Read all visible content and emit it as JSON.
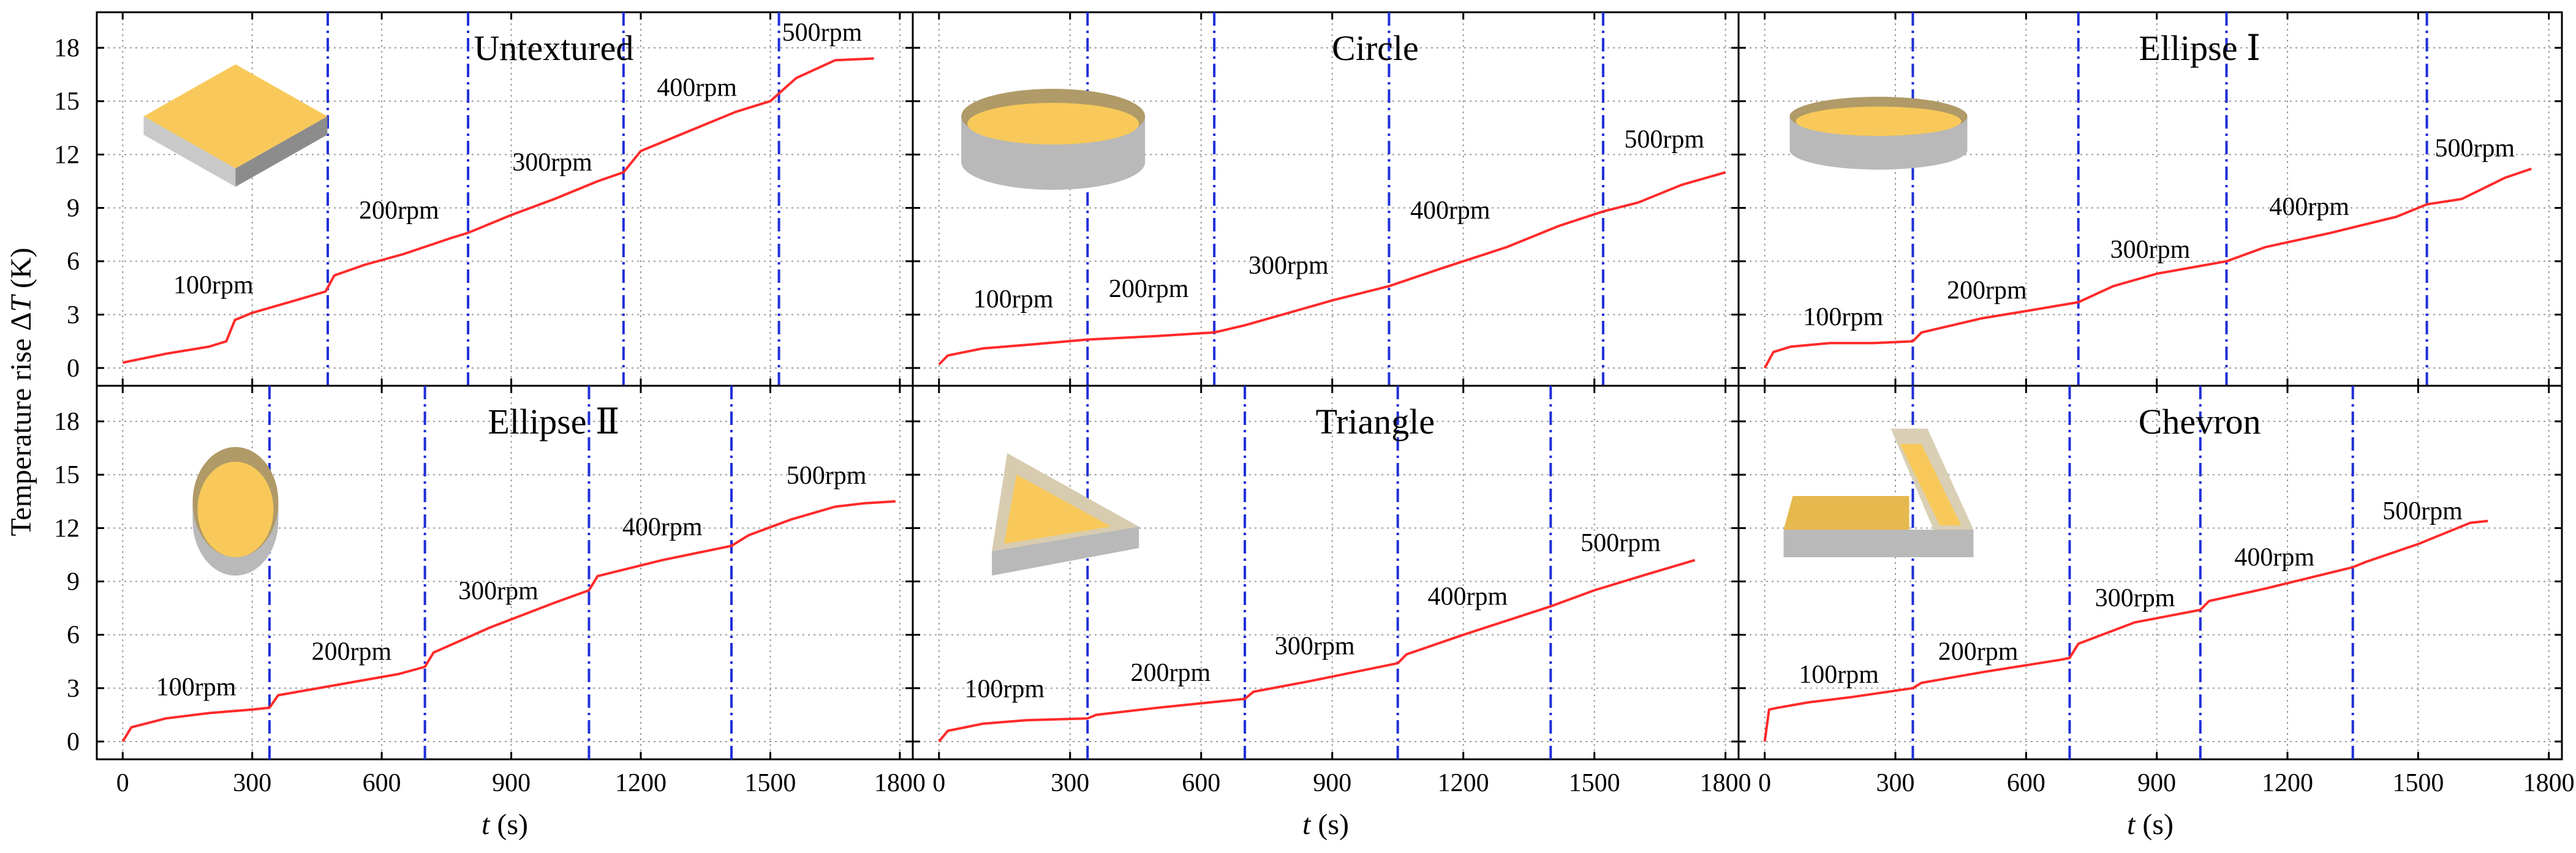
{
  "figure": {
    "y_axis_label_prefix": "Temperature rise Δ",
    "y_axis_label_var": "T",
    "y_axis_label_suffix": " (K)",
    "x_axis_label_var": "t",
    "x_axis_label_suffix": " (s)",
    "colors": {
      "curve": "#ff2a2a",
      "divider": "#1f2fd8",
      "grid": "#9a9a9a",
      "shape_top": "#f8c95a",
      "shape_side": "#b9b9b9",
      "shape_rim": "#b09a67"
    }
  },
  "chart_data": [
    {
      "type": "line",
      "title": "Untextured",
      "shape": "square-block",
      "xlabel": "t (s)",
      "ylabel": "Temperature rise ΔT (K)",
      "xlim": [
        -60,
        1830
      ],
      "ylim": [
        -1,
        20
      ],
      "xticks": [
        0,
        300,
        600,
        900,
        1200,
        1500,
        1800
      ],
      "yticks": [
        0,
        3,
        6,
        9,
        12,
        15,
        18
      ],
      "grid": true,
      "dividers": [
        475,
        800,
        1160,
        1520
      ],
      "rpm_labels": [
        {
          "text": "100rpm",
          "t": 210,
          "T": 4.2
        },
        {
          "text": "200rpm",
          "t": 640,
          "T": 8.4
        },
        {
          "text": "300rpm",
          "t": 995,
          "T": 11.1
        },
        {
          "text": "400rpm",
          "t": 1330,
          "T": 15.3
        },
        {
          "text": "500rpm",
          "t": 1620,
          "T": 18.4
        }
      ],
      "series": [
        {
          "name": "ΔT",
          "x": [
            0,
            100,
            200,
            240,
            260,
            300,
            400,
            470,
            490,
            560,
            650,
            760,
            800,
            900,
            1000,
            1100,
            1160,
            1200,
            1300,
            1420,
            1500,
            1560,
            1650,
            1740
          ],
          "y": [
            0.3,
            0.8,
            1.2,
            1.5,
            2.7,
            3.1,
            3.8,
            4.3,
            5.2,
            5.8,
            6.4,
            7.3,
            7.6,
            8.6,
            9.5,
            10.5,
            11.0,
            12.2,
            13.2,
            14.4,
            15.0,
            16.3,
            17.3,
            17.4
          ]
        }
      ]
    },
    {
      "type": "line",
      "title": "Circle",
      "shape": "circle-disc",
      "xlabel": "t (s)",
      "ylabel": "",
      "xlim": [
        -60,
        1830
      ],
      "ylim": [
        -1,
        20
      ],
      "xticks": [
        0,
        300,
        600,
        900,
        1200,
        1500,
        1800
      ],
      "yticks": [
        0,
        3,
        6,
        9,
        12,
        15,
        18
      ],
      "grid": true,
      "dividers": [
        340,
        630,
        1030,
        1520
      ],
      "rpm_labels": [
        {
          "text": "100rpm",
          "t": 170,
          "T": 3.4
        },
        {
          "text": "200rpm",
          "t": 480,
          "T": 4.0
        },
        {
          "text": "300rpm",
          "t": 800,
          "T": 5.3
        },
        {
          "text": "400rpm",
          "t": 1170,
          "T": 8.4
        },
        {
          "text": "500rpm",
          "t": 1660,
          "T": 12.4
        }
      ],
      "series": [
        {
          "name": "ΔT",
          "x": [
            0,
            20,
            100,
            200,
            340,
            500,
            630,
            700,
            800,
            900,
            1030,
            1150,
            1300,
            1420,
            1520,
            1600,
            1700,
            1800
          ],
          "y": [
            0.2,
            0.7,
            1.1,
            1.3,
            1.6,
            1.8,
            2.0,
            2.4,
            3.1,
            3.8,
            4.6,
            5.6,
            6.8,
            8.0,
            8.8,
            9.3,
            10.3,
            11.0
          ]
        }
      ]
    },
    {
      "type": "line",
      "title": "Ellipse Ⅰ",
      "shape": "ellipse-disc",
      "xlabel": "t (s)",
      "ylabel": "",
      "xlim": [
        -60,
        1830
      ],
      "ylim": [
        -1,
        20
      ],
      "xticks": [
        0,
        300,
        600,
        900,
        1200,
        1500,
        1800
      ],
      "yticks": [
        0,
        3,
        6,
        9,
        12,
        15,
        18
      ],
      "grid": true,
      "dividers": [
        340,
        720,
        1060,
        1520
      ],
      "rpm_labels": [
        {
          "text": "100rpm",
          "t": 180,
          "T": 2.4
        },
        {
          "text": "200rpm",
          "t": 510,
          "T": 3.9
        },
        {
          "text": "300rpm",
          "t": 885,
          "T": 6.2
        },
        {
          "text": "400rpm",
          "t": 1250,
          "T": 8.6
        },
        {
          "text": "500rpm",
          "t": 1630,
          "T": 11.9
        }
      ],
      "series": [
        {
          "name": "ΔT",
          "x": [
            0,
            20,
            60,
            150,
            250,
            340,
            360,
            500,
            600,
            720,
            800,
            900,
            1060,
            1150,
            1300,
            1450,
            1520,
            1600,
            1700,
            1760
          ],
          "y": [
            0.0,
            0.9,
            1.2,
            1.4,
            1.4,
            1.5,
            2.0,
            2.8,
            3.2,
            3.7,
            4.6,
            5.3,
            6.0,
            6.8,
            7.6,
            8.5,
            9.2,
            9.5,
            10.7,
            11.2
          ]
        }
      ]
    },
    {
      "type": "line",
      "title": "Ellipse Ⅱ",
      "shape": "ellipse-vertical",
      "xlabel": "t (s)",
      "ylabel": "",
      "xlim": [
        -60,
        1830
      ],
      "ylim": [
        -1,
        20
      ],
      "xticks": [
        0,
        300,
        600,
        900,
        1200,
        1500,
        1800
      ],
      "yticks": [
        0,
        3,
        6,
        9,
        12,
        15,
        18
      ],
      "grid": true,
      "dividers": [
        340,
        700,
        1080,
        1410
      ],
      "rpm_labels": [
        {
          "text": "100rpm",
          "t": 170,
          "T": 2.6
        },
        {
          "text": "200rpm",
          "t": 530,
          "T": 4.6
        },
        {
          "text": "300rpm",
          "t": 870,
          "T": 8.0
        },
        {
          "text": "400rpm",
          "t": 1250,
          "T": 11.6
        },
        {
          "text": "500rpm",
          "t": 1630,
          "T": 14.5
        }
      ],
      "series": [
        {
          "name": "ΔT",
          "x": [
            0,
            20,
            100,
            200,
            300,
            340,
            360,
            500,
            640,
            700,
            720,
            850,
            1000,
            1080,
            1100,
            1250,
            1410,
            1450,
            1550,
            1650,
            1720,
            1790
          ],
          "y": [
            0.0,
            0.8,
            1.3,
            1.6,
            1.8,
            1.9,
            2.6,
            3.2,
            3.8,
            4.2,
            5.0,
            6.4,
            7.8,
            8.5,
            9.3,
            10.2,
            11.0,
            11.6,
            12.5,
            13.2,
            13.4,
            13.5
          ]
        }
      ]
    },
    {
      "type": "line",
      "title": "Triangle",
      "shape": "triangle-block",
      "xlabel": "t (s)",
      "ylabel": "",
      "xlim": [
        -60,
        1830
      ],
      "ylim": [
        -1,
        20
      ],
      "xticks": [
        0,
        300,
        600,
        900,
        1200,
        1500,
        1800
      ],
      "yticks": [
        0,
        3,
        6,
        9,
        12,
        15,
        18
      ],
      "grid": true,
      "dividers": [
        340,
        700,
        1050,
        1400
      ],
      "rpm_labels": [
        {
          "text": "100rpm",
          "t": 150,
          "T": 2.5
        },
        {
          "text": "200rpm",
          "t": 530,
          "T": 3.4
        },
        {
          "text": "300rpm",
          "t": 860,
          "T": 4.9
        },
        {
          "text": "400rpm",
          "t": 1210,
          "T": 7.7
        },
        {
          "text": "500rpm",
          "t": 1560,
          "T": 10.7
        }
      ],
      "series": [
        {
          "name": "ΔT",
          "x": [
            0,
            20,
            100,
            200,
            340,
            360,
            500,
            700,
            720,
            850,
            1050,
            1070,
            1200,
            1400,
            1500,
            1620,
            1730
          ],
          "y": [
            0.0,
            0.6,
            1.0,
            1.2,
            1.3,
            1.5,
            1.9,
            2.4,
            2.8,
            3.4,
            4.4,
            4.9,
            6.0,
            7.6,
            8.5,
            9.4,
            10.2
          ]
        }
      ]
    },
    {
      "type": "line",
      "title": "Chevron",
      "shape": "chevron-block",
      "xlabel": "t (s)",
      "ylabel": "",
      "xlim": [
        -60,
        1830
      ],
      "ylim": [
        -1,
        20
      ],
      "xticks": [
        0,
        300,
        600,
        900,
        1200,
        1500,
        1800
      ],
      "yticks": [
        0,
        3,
        6,
        9,
        12,
        15,
        18
      ],
      "grid": true,
      "dividers": [
        340,
        700,
        1000,
        1350
      ],
      "rpm_labels": [
        {
          "text": "100rpm",
          "t": 170,
          "T": 3.3
        },
        {
          "text": "200rpm",
          "t": 490,
          "T": 4.6
        },
        {
          "text": "300rpm",
          "t": 850,
          "T": 7.6
        },
        {
          "text": "400rpm",
          "t": 1170,
          "T": 9.9
        },
        {
          "text": "500rpm",
          "t": 1510,
          "T": 12.5
        }
      ],
      "series": [
        {
          "name": "ΔT",
          "x": [
            0,
            10,
            30,
            100,
            200,
            340,
            360,
            500,
            680,
            700,
            720,
            850,
            1000,
            1020,
            1150,
            1350,
            1380,
            1500,
            1620,
            1660
          ],
          "y": [
            0.0,
            1.8,
            1.9,
            2.2,
            2.5,
            3.0,
            3.3,
            3.9,
            4.6,
            4.7,
            5.5,
            6.7,
            7.4,
            7.9,
            8.6,
            9.8,
            10.1,
            11.1,
            12.3,
            12.4
          ]
        }
      ]
    }
  ]
}
